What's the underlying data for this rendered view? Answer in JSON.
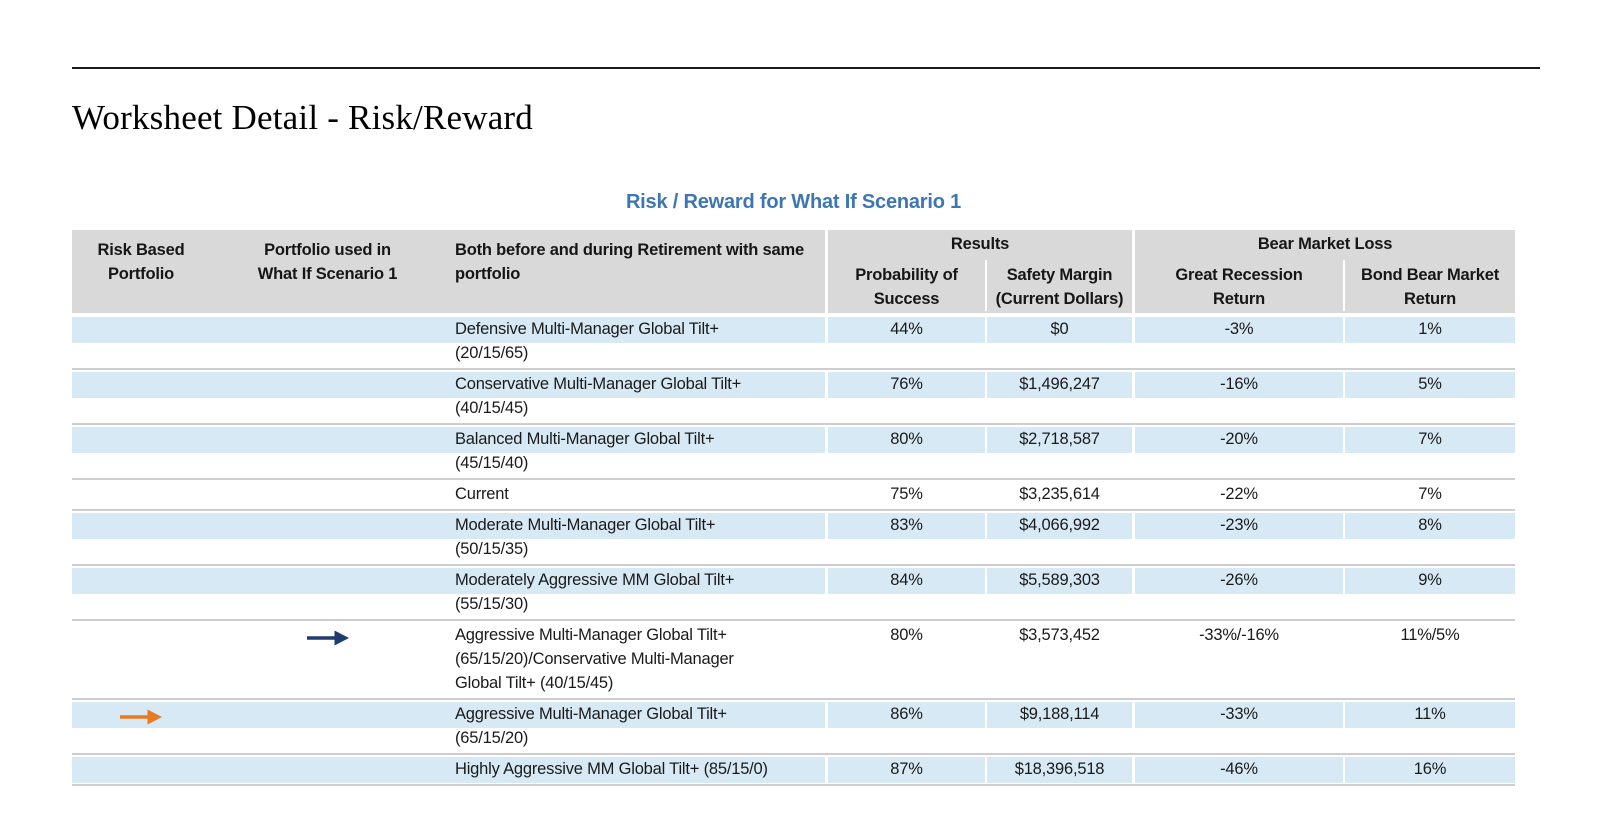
{
  "page": {
    "title": "Worksheet Detail - Risk/Reward"
  },
  "colors": {
    "accent_blue": "#3d76b2",
    "header_gray": "#d9d9d9",
    "row_band_blue": "#d7e9f5",
    "row_divider_gray": "#cbcdd0",
    "whatif_arrow_navy": "#1e3c6e",
    "risk_arrow_orange": "#e87b22"
  },
  "icons": {
    "risk_arrow": "orange-right-arrow",
    "whatif_arrow": "navy-right-arrow"
  },
  "table": {
    "title": "Risk / Reward for What If Scenario 1",
    "groups": {
      "results": "Results",
      "bear_market_loss": "Bear Market Loss"
    },
    "headers": {
      "risk_based": "Risk Based\nPortfolio",
      "whatif": "Portfolio used in\nWhat If Scenario 1",
      "both": "Both before and during Retirement with same\nportfolio",
      "probability": "Probability of\nSuccess",
      "safety": "Safety Margin\n(Current Dollars)",
      "recession": "Great Recession\nReturn",
      "bond": "Bond Bear Market\nReturn"
    },
    "rows": [
      {
        "name_lines": [
          "Defensive Multi-Manager Global Tilt+",
          "(20/15/65)"
        ],
        "probability_of_success": "44%",
        "safety_margin": "$0",
        "great_recession_return": "-3%",
        "bond_bear_market_return": "1%",
        "shaded": true,
        "arrow": null
      },
      {
        "name_lines": [
          "Conservative Multi-Manager Global Tilt+",
          "(40/15/45)"
        ],
        "probability_of_success": "76%",
        "safety_margin": "$1,496,247",
        "great_recession_return": "-16%",
        "bond_bear_market_return": "5%",
        "shaded": true,
        "arrow": null
      },
      {
        "name_lines": [
          "Balanced Multi-Manager Global Tilt+",
          "(45/15/40)"
        ],
        "probability_of_success": "80%",
        "safety_margin": "$2,718,587",
        "great_recession_return": "-20%",
        "bond_bear_market_return": "7%",
        "shaded": true,
        "arrow": null
      },
      {
        "name_lines": [
          "Current"
        ],
        "probability_of_success": "75%",
        "safety_margin": "$3,235,614",
        "great_recession_return": "-22%",
        "bond_bear_market_return": "7%",
        "shaded": false,
        "arrow": null
      },
      {
        "name_lines": [
          "Moderate Multi-Manager Global Tilt+",
          "(50/15/35)"
        ],
        "probability_of_success": "83%",
        "safety_margin": "$4,066,992",
        "great_recession_return": "-23%",
        "bond_bear_market_return": "8%",
        "shaded": true,
        "arrow": null
      },
      {
        "name_lines": [
          "Moderately Aggressive MM Global Tilt+",
          "(55/15/30)"
        ],
        "probability_of_success": "84%",
        "safety_margin": "$5,589,303",
        "great_recession_return": "-26%",
        "bond_bear_market_return": "9%",
        "shaded": true,
        "arrow": null
      },
      {
        "name_lines": [
          "Aggressive Multi-Manager Global Tilt+",
          "(65/15/20)/Conservative Multi-Manager",
          "Global Tilt+ (40/15/45)"
        ],
        "probability_of_success": "80%",
        "safety_margin": "$3,573,452",
        "great_recession_return": "-33%/-16%",
        "bond_bear_market_return": "11%/5%",
        "shaded": false,
        "arrow": "whatif"
      },
      {
        "name_lines": [
          "Aggressive Multi-Manager Global Tilt+",
          "(65/15/20)"
        ],
        "probability_of_success": "86%",
        "safety_margin": "$9,188,114",
        "great_recession_return": "-33%",
        "bond_bear_market_return": "11%",
        "shaded": true,
        "arrow": "risk"
      },
      {
        "name_lines": [
          "Highly Aggressive MM Global Tilt+ (85/15/0)"
        ],
        "probability_of_success": "87%",
        "safety_margin": "$18,396,518",
        "great_recession_return": "-46%",
        "bond_bear_market_return": "16%",
        "shaded": true,
        "arrow": null
      }
    ]
  }
}
